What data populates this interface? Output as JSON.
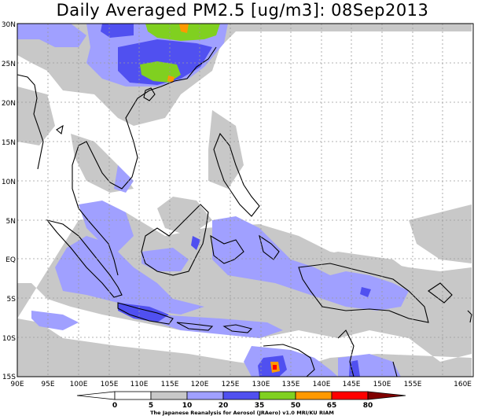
{
  "title": "Daily Averaged PM2.5 [ug/m3]: 08Sep2013",
  "lat_labels": [
    "30N",
    "25N",
    "20N",
    "15N",
    "10N",
    "5N",
    "EQ",
    "5S",
    "10S",
    "15S"
  ],
  "lon_labels": [
    "90E",
    "95E",
    "100E",
    "105E",
    "110E",
    "115E",
    "120E",
    "125E",
    "130E",
    "135E",
    "140E",
    "145E",
    "150E",
    "155E",
    "160E"
  ],
  "colorbar": {
    "ticks": [
      "0",
      "5",
      "10",
      "20",
      "35",
      "50",
      "65",
      "80"
    ],
    "colors": [
      "#ffffff",
      "#c8c8c8",
      "#a0a0ff",
      "#5050f0",
      "#80d020",
      "#ff9900",
      "#ff0000",
      "#800000"
    ]
  },
  "credit": "The Japanese Reanalysis for Aerosol (JRAero) v1.0 MRI/KU RIAM",
  "colors": {
    "grey": "#c8c8c8",
    "light_blue": "#a0a0ff",
    "blue": "#5050f0",
    "green": "#80d020",
    "orange": "#ff9900",
    "red": "#ff0000"
  }
}
